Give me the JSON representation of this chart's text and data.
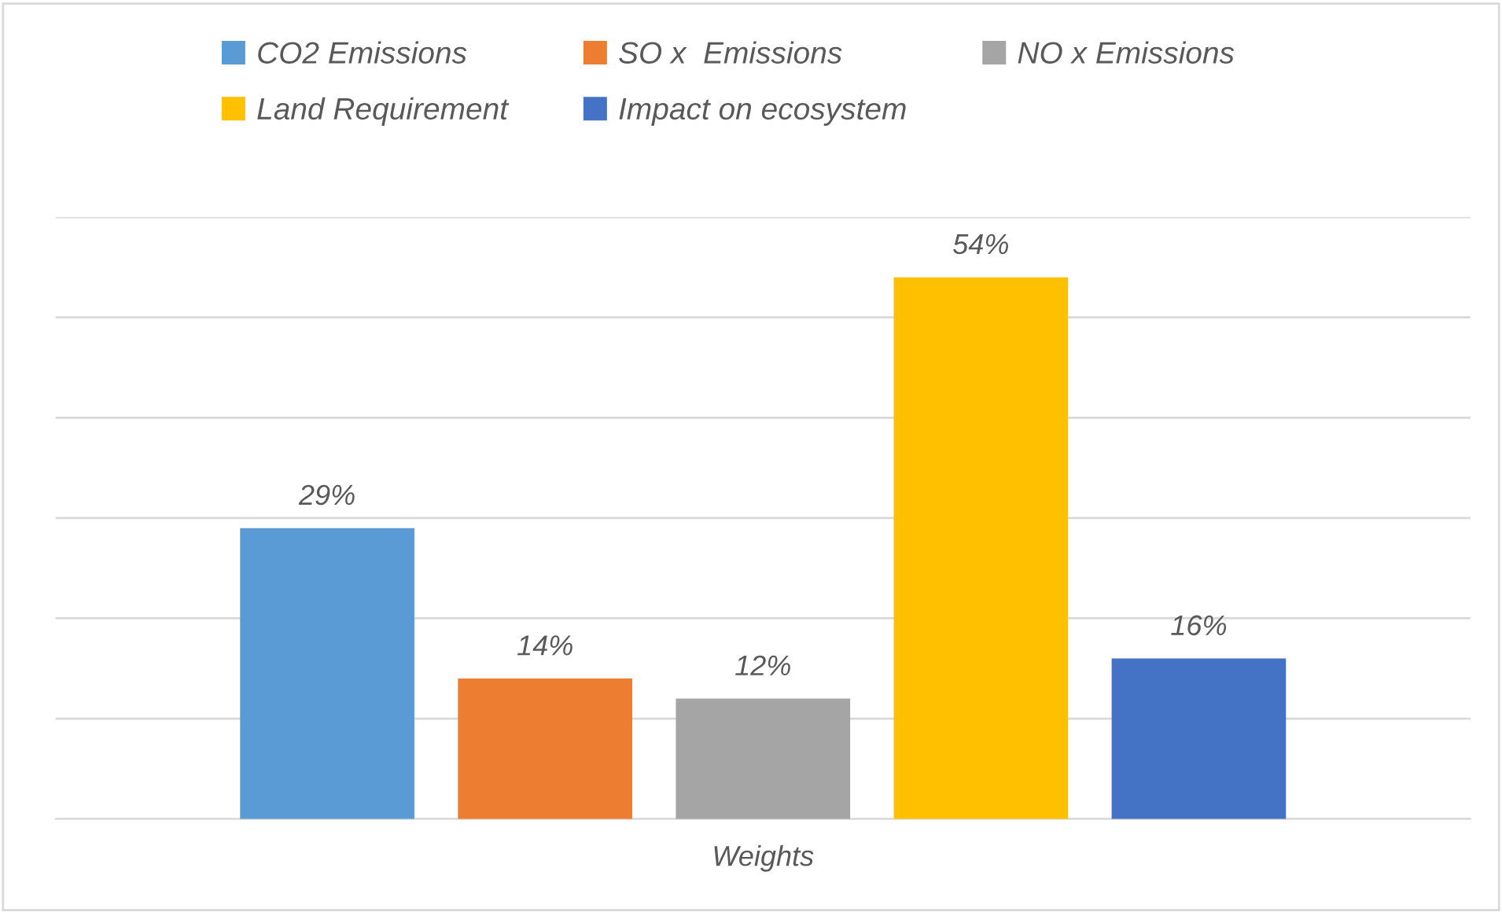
{
  "chart_data": {
    "type": "bar",
    "xlabel": "Weights",
    "categories": [
      null
    ],
    "series": [
      {
        "name": "CO2 Emissions",
        "color": "#5b9bd5",
        "values": [
          29
        ],
        "value_labels": [
          "29%"
        ]
      },
      {
        "name": "SO x  Emissions",
        "color": "#ed7d31",
        "values": [
          14
        ],
        "value_labels": [
          "14%"
        ]
      },
      {
        "name": "NO x Emissions",
        "color": "#a5a5a5",
        "values": [
          12
        ],
        "value_labels": [
          "12%"
        ]
      },
      {
        "name": "Land Requirement",
        "color": "#ffc000",
        "values": [
          54
        ],
        "value_labels": [
          "54%"
        ]
      },
      {
        "name": "Impact on ecosystem",
        "color": "#4472c4",
        "values": [
          16
        ],
        "value_labels": [
          "16%"
        ]
      }
    ],
    "ylim": [
      0,
      60
    ],
    "yticks": [
      {
        "value": 0,
        "label": null
      },
      {
        "value": 10,
        "label": null
      },
      {
        "value": 20,
        "label": null
      },
      {
        "value": 30,
        "label": null
      },
      {
        "value": 40,
        "label": null
      },
      {
        "value": 50,
        "label": null
      },
      {
        "value": 60,
        "label": null
      }
    ],
    "grid": "y",
    "legend": "top",
    "tick_labels": false
  }
}
